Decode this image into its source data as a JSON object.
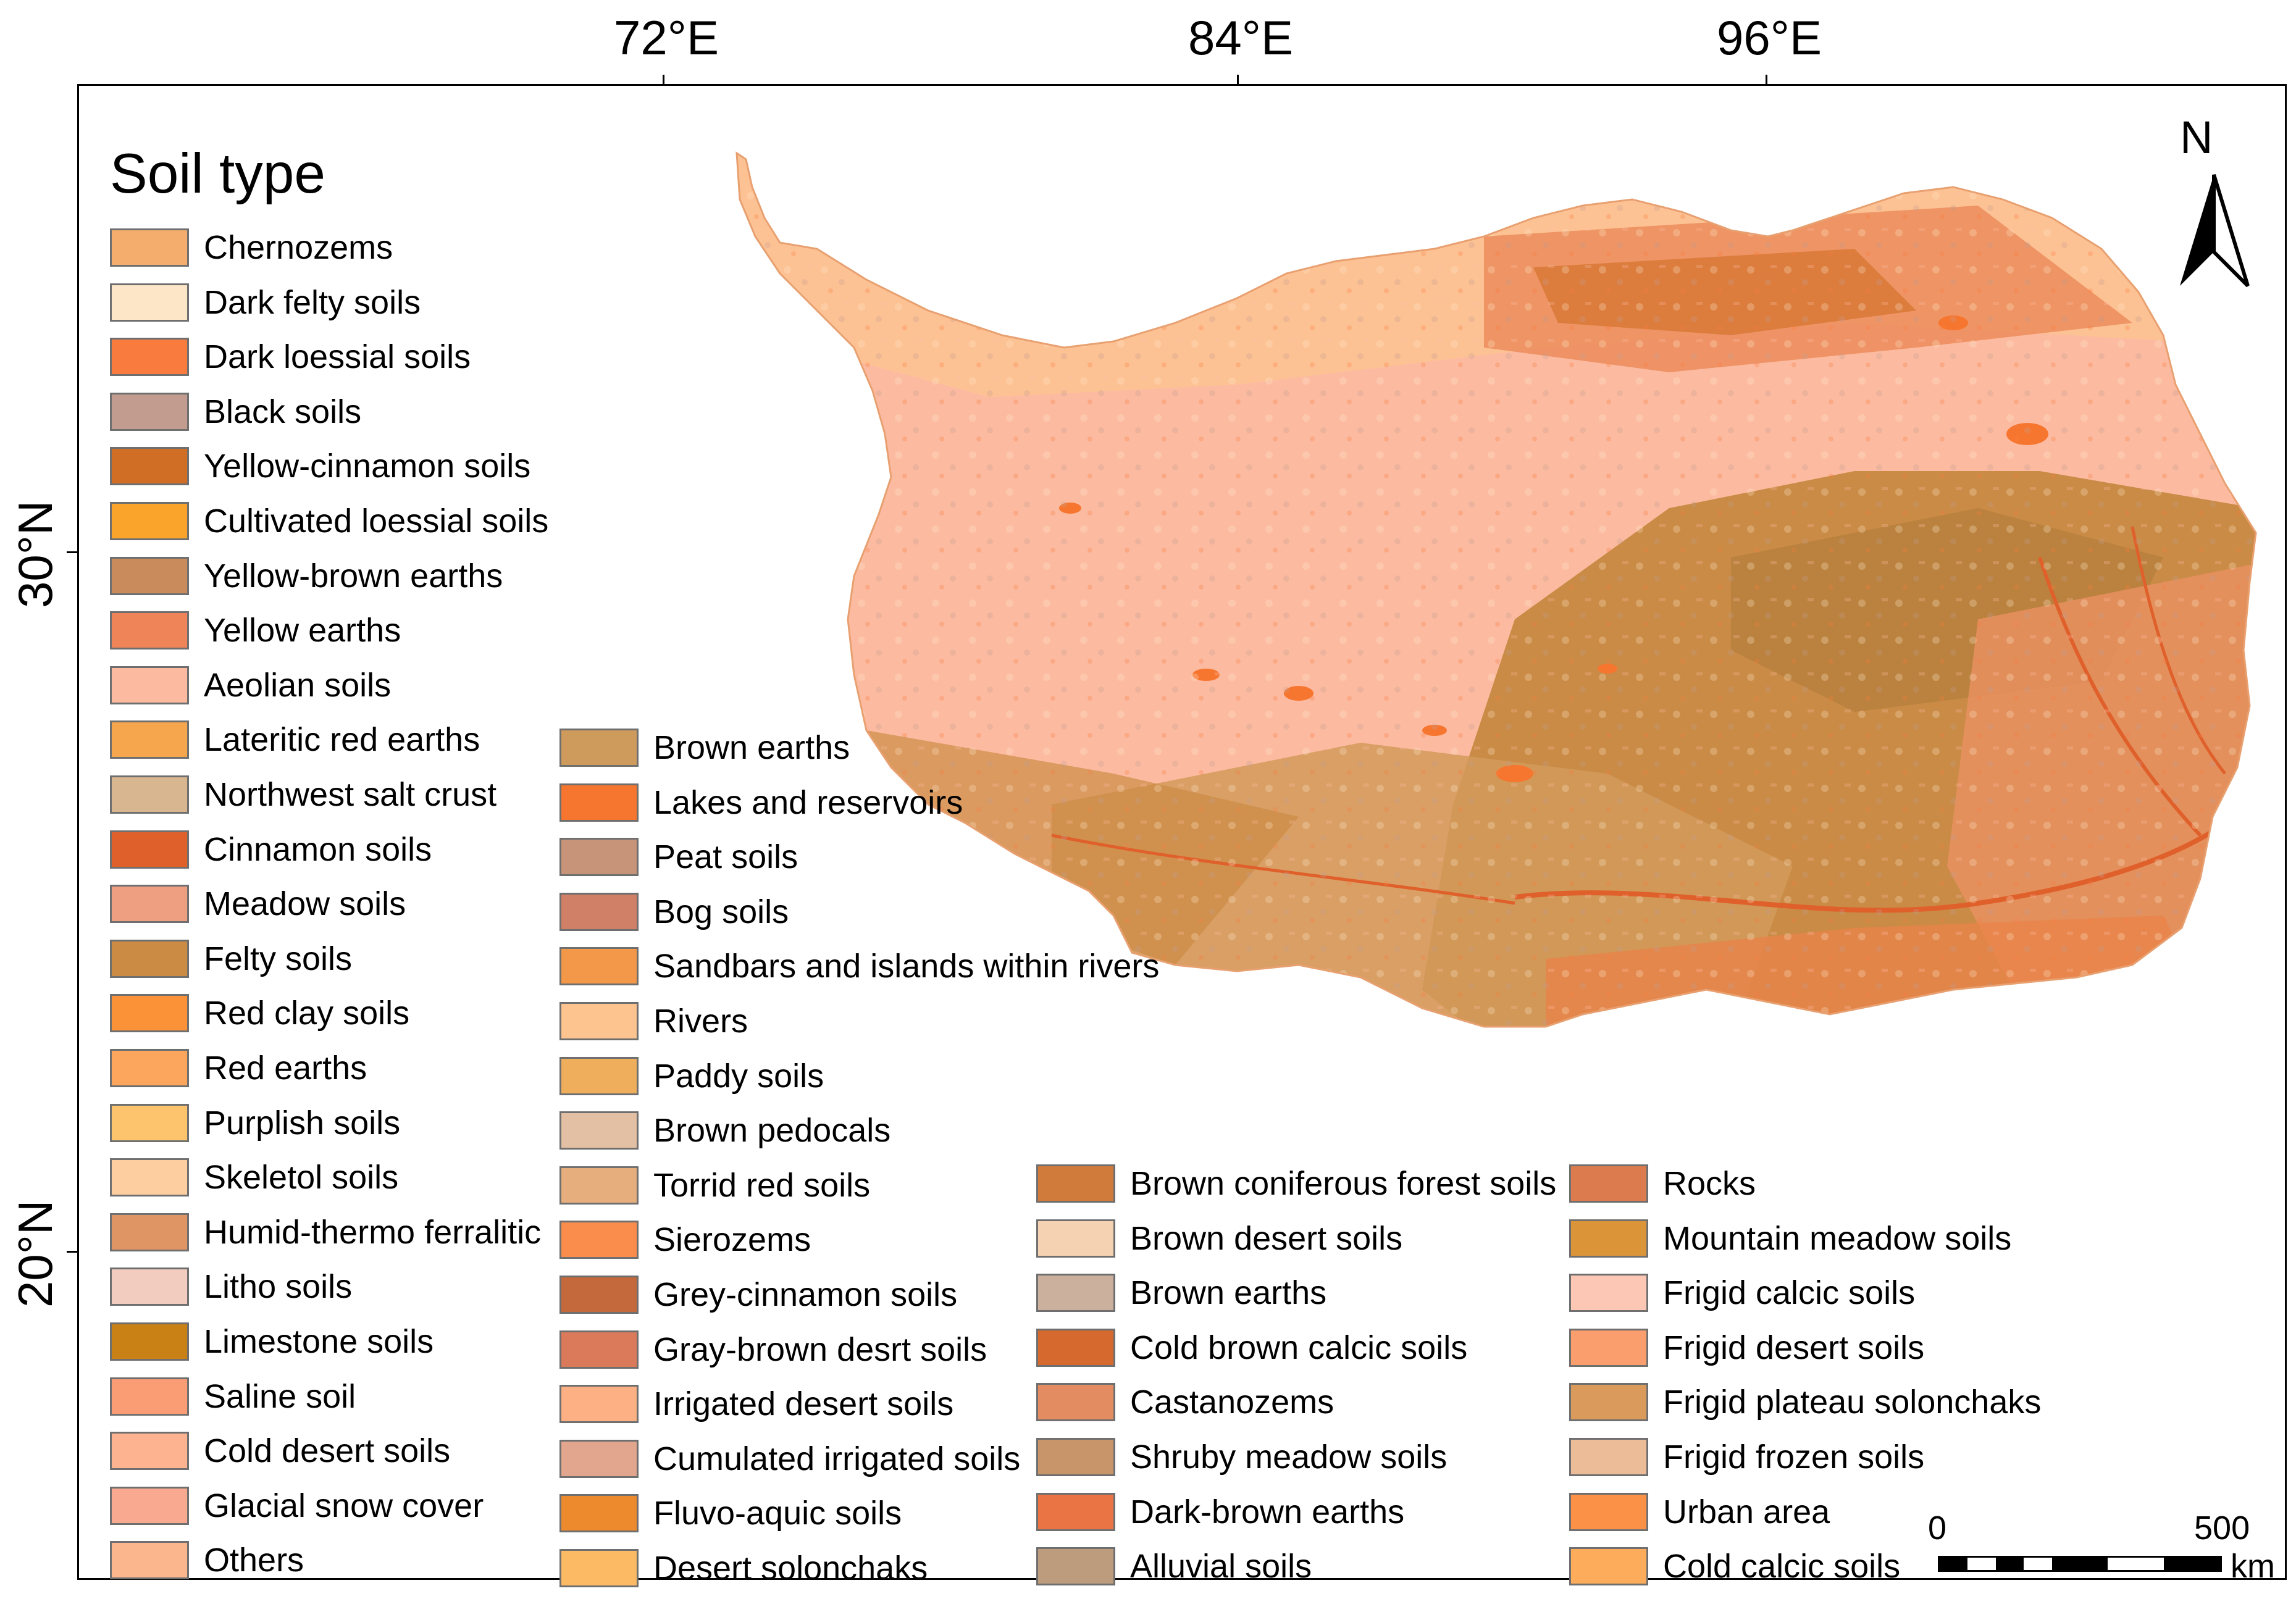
{
  "map": {
    "lon_labels": [
      "72°E",
      "84°E",
      "96°E"
    ],
    "lat_labels": [
      "30°N",
      "20°N"
    ],
    "north_label": "N",
    "scale": {
      "zero": "0",
      "max": "500",
      "unit": "km"
    }
  },
  "legend": {
    "title": "Soil type",
    "columns": [
      [
        {
          "label": "Chernozems",
          "color": "#f4ad6d"
        },
        {
          "label": "Dark felty soils",
          "color": "#fde6c8"
        },
        {
          "label": "Dark loessial soils",
          "color": "#f97b3e"
        },
        {
          "label": "Black soils",
          "color": "#c29c8e"
        },
        {
          "label": "Yellow-cinnamon soils",
          "color": "#cf6e24"
        },
        {
          "label": "Cultivated loessial soils",
          "color": "#fba42c"
        },
        {
          "label": "Yellow-brown earths",
          "color": "#c98b5c"
        },
        {
          "label": "Yellow earths",
          "color": "#ee8458"
        },
        {
          "label": "Aeolian soils",
          "color": "#fcbba1"
        },
        {
          "label": "Lateritic red earths",
          "color": "#f6a64c"
        },
        {
          "label": "Northwest salt crust",
          "color": "#d8b690"
        },
        {
          "label": "Cinnamon soils",
          "color": "#e0602b"
        },
        {
          "label": "Meadow soils",
          "color": "#ee9f82"
        },
        {
          "label": "Felty soils",
          "color": "#cc8b45"
        },
        {
          "label": "Red clay soils",
          "color": "#fb9238"
        },
        {
          "label": "Red earths",
          "color": "#fca55c"
        },
        {
          "label": "Purplish soils",
          "color": "#fdc46d"
        },
        {
          "label": "Skeletol soils",
          "color": "#fdcfa0"
        },
        {
          "label": "Humid-thermo ferralitic",
          "color": "#df9564"
        },
        {
          "label": "Litho soils",
          "color": "#f2ccbf"
        },
        {
          "label": "Limestone soils",
          "color": "#c98116"
        },
        {
          "label": "Saline soil",
          "color": "#fb9d74"
        },
        {
          "label": "Cold desert soils",
          "color": "#fdb38f"
        },
        {
          "label": "Glacial snow cover",
          "color": "#f8a990"
        },
        {
          "label": "Others",
          "color": "#fcb68e"
        }
      ],
      [
        {
          "label": "Brown earths",
          "color": "#cf9b5d"
        },
        {
          "label": "Lakes and reservoirs",
          "color": "#f7762f"
        },
        {
          "label": "Peat soils",
          "color": "#c79379"
        },
        {
          "label": "Bog soils",
          "color": "#d08066"
        },
        {
          "label": "Sandbars and islands within rivers",
          "color": "#f29848"
        },
        {
          "label": "Rivers",
          "color": "#fdc490"
        },
        {
          "label": "Paddy soils",
          "color": "#eeae5c"
        },
        {
          "label": "Brown pedocals",
          "color": "#e3c0a3"
        },
        {
          "label": "Torrid red soils",
          "color": "#e6ae7d"
        },
        {
          "label": "Sierozems",
          "color": "#fb8d4c"
        },
        {
          "label": "Grey-cinnamon soils",
          "color": "#c4693c"
        },
        {
          "label": "Gray-brown desrt soils",
          "color": "#db7a5a"
        },
        {
          "label": "Irrigated desert soils",
          "color": "#fcb083"
        },
        {
          "label": "Cumulated irrigated soils",
          "color": "#e2a58e"
        },
        {
          "label": "Fluvo-aquic soils",
          "color": "#ed8a2d"
        },
        {
          "label": "Desert solonchaks",
          "color": "#fdba64"
        }
      ],
      [
        {
          "label": "Brown coniferous forest soils",
          "color": "#d07a3c"
        },
        {
          "label": "Brown desert soils",
          "color": "#f5d3b2"
        },
        {
          "label": "Brown earths",
          "color": "#cbb09d"
        },
        {
          "label": "Cold brown calcic soils",
          "color": "#d66a2e"
        },
        {
          "label": "Castanozems",
          "color": "#e38c62"
        },
        {
          "label": "Shruby meadow soils",
          "color": "#c8956b"
        },
        {
          "label": "Dark-brown earths",
          "color": "#ea7444"
        },
        {
          "label": "Alluvial soils",
          "color": "#bc9c7c"
        }
      ],
      [
        {
          "label": "Rocks",
          "color": "#dc7c4e"
        },
        {
          "label": "Mountain meadow soils",
          "color": "#db9438"
        },
        {
          "label": "Frigid calcic soils",
          "color": "#fcc7b4"
        },
        {
          "label": "Frigid desert soils",
          "color": "#fb9e6e"
        },
        {
          "label": "Frigid plateau solonchaks",
          "color": "#d99a5c"
        },
        {
          "label": "Frigid frozen soils",
          "color": "#ecbb97"
        },
        {
          "label": "Urban area",
          "color": "#fb9146"
        },
        {
          "label": "Cold calcic soils",
          "color": "#fdac5c"
        }
      ]
    ]
  }
}
